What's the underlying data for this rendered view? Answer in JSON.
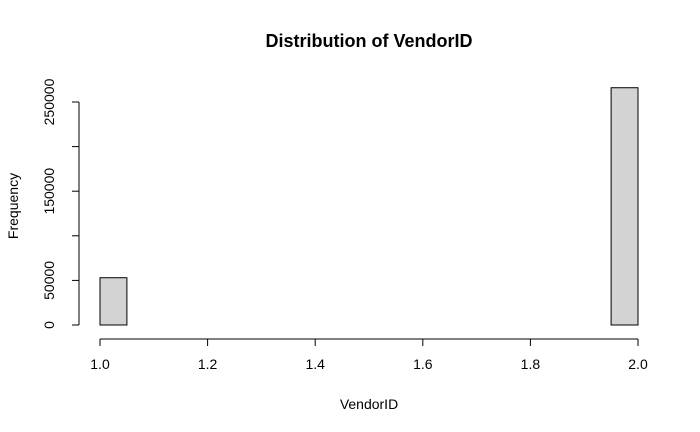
{
  "chart_data": {
    "type": "bar",
    "title": "Distribution of VendorID",
    "xlabel": "VendorID",
    "ylabel": "Frequency",
    "xlim": [
      1.0,
      2.0
    ],
    "ylim": [
      0,
      250000
    ],
    "x_ticks": [
      1.0,
      1.2,
      1.4,
      1.6,
      1.8,
      2.0
    ],
    "x_tick_labels": [
      "1.0",
      "1.2",
      "1.4",
      "1.6",
      "1.8",
      "2.0"
    ],
    "y_ticks": [
      0,
      50000,
      100000,
      150000,
      200000,
      250000
    ],
    "y_tick_labels": [
      "0",
      "50000",
      "",
      "150000",
      "",
      "250000"
    ],
    "bin_width": 0.05,
    "bins": [
      {
        "start": 1.0,
        "end": 1.05,
        "count": 53000
      },
      {
        "start": 1.05,
        "end": 1.1,
        "count": 0
      },
      {
        "start": 1.1,
        "end": 1.15,
        "count": 0
      },
      {
        "start": 1.15,
        "end": 1.2,
        "count": 0
      },
      {
        "start": 1.2,
        "end": 1.25,
        "count": 0
      },
      {
        "start": 1.25,
        "end": 1.3,
        "count": 0
      },
      {
        "start": 1.3,
        "end": 1.35,
        "count": 0
      },
      {
        "start": 1.35,
        "end": 1.4,
        "count": 0
      },
      {
        "start": 1.4,
        "end": 1.45,
        "count": 0
      },
      {
        "start": 1.45,
        "end": 1.5,
        "count": 0
      },
      {
        "start": 1.5,
        "end": 1.55,
        "count": 0
      },
      {
        "start": 1.55,
        "end": 1.6,
        "count": 0
      },
      {
        "start": 1.6,
        "end": 1.65,
        "count": 0
      },
      {
        "start": 1.65,
        "end": 1.7,
        "count": 0
      },
      {
        "start": 1.7,
        "end": 1.75,
        "count": 0
      },
      {
        "start": 1.75,
        "end": 1.8,
        "count": 0
      },
      {
        "start": 1.8,
        "end": 1.85,
        "count": 0
      },
      {
        "start": 1.85,
        "end": 1.9,
        "count": 0
      },
      {
        "start": 1.9,
        "end": 1.95,
        "count": 0
      },
      {
        "start": 1.95,
        "end": 2.0,
        "count": 266000
      }
    ],
    "bar_fill": "#d3d3d3",
    "bar_stroke": "#000000",
    "grid": false,
    "legend": "none"
  }
}
